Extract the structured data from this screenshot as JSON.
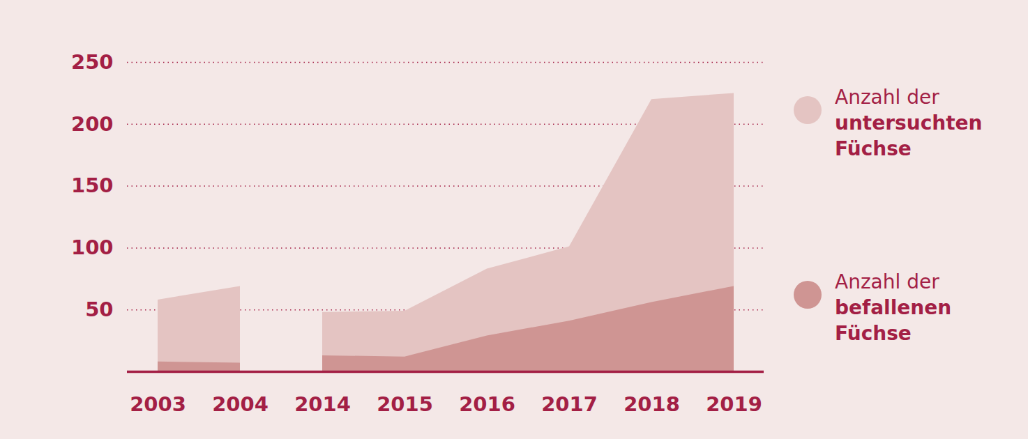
{
  "chart_data": {
    "type": "area",
    "categories": [
      "2003",
      "2004",
      "2014",
      "2015",
      "2016",
      "2017",
      "2018",
      "2019"
    ],
    "series": [
      {
        "name": "Anzahl der untersuchten Füchse",
        "color": "#e4c4c2",
        "values": [
          58,
          69,
          48,
          49,
          83,
          101,
          220,
          225
        ]
      },
      {
        "name": "Anzahl der befallenen Füchse",
        "color": "#cf9593",
        "values": [
          8,
          7,
          13,
          12,
          29,
          41,
          56,
          69
        ]
      }
    ],
    "ylim": [
      0,
      250
    ],
    "yticks": [
      50,
      100,
      150,
      200,
      250
    ],
    "grid": true,
    "stacked": false,
    "legend": "right"
  }
}
